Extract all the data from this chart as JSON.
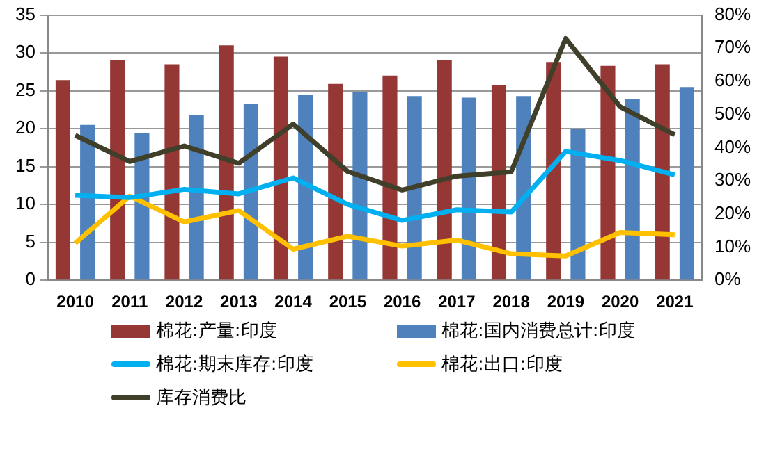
{
  "chart_data": {
    "type": "bar",
    "categories": [
      "2010",
      "2011",
      "2012",
      "2013",
      "2014",
      "2015",
      "2016",
      "2017",
      "2018",
      "2019",
      "2020",
      "2021"
    ],
    "series": [
      {
        "name": "棉花:产量:印度",
        "color": "#953735",
        "values": [
          26.4,
          29.0,
          28.5,
          31.0,
          29.5,
          25.9,
          27.0,
          29.0,
          25.7,
          28.8,
          28.3,
          28.5
        ]
      },
      {
        "name": "棉花:国内消费总计:印度",
        "color": "#4f81bd",
        "values": [
          20.5,
          19.4,
          21.8,
          23.3,
          24.5,
          24.8,
          24.3,
          24.1,
          24.3,
          20.0,
          23.9,
          25.5
        ]
      },
      {
        "name": "棉花:期末库存:印度",
        "type": "line",
        "color": "#00b0f0",
        "values": [
          11.2,
          10.9,
          12.0,
          11.4,
          13.5,
          10.0,
          7.9,
          9.3,
          9.0,
          17.0,
          15.8,
          13.9
        ]
      },
      {
        "name": "棉花:出口:印度",
        "type": "line",
        "color": "#ffc000",
        "values": [
          4.9,
          11.1,
          7.7,
          9.2,
          4.1,
          5.8,
          4.5,
          5.3,
          3.5,
          3.2,
          6.3,
          6.0
        ]
      },
      {
        "name": "库存消费比",
        "type": "line",
        "axis": "y2",
        "color": "#3f3f2a",
        "values": [
          43.7,
          35.8,
          40.5,
          35.3,
          47.1,
          32.8,
          27.2,
          31.4,
          32.7,
          72.9,
          52.3,
          43.9
        ]
      }
    ],
    "ylim": [
      0,
      35
    ],
    "yticks": [
      0,
      5,
      10,
      15,
      20,
      25,
      30,
      35
    ],
    "y2lim": [
      0,
      80
    ],
    "y2ticks": [
      {
        "value": 0,
        "label": "0%"
      },
      {
        "value": 10,
        "label": "10%"
      },
      {
        "value": 20,
        "label": "20%"
      },
      {
        "value": 30,
        "label": "30%"
      },
      {
        "value": 40,
        "label": "40%"
      },
      {
        "value": 50,
        "label": "50%"
      },
      {
        "value": 60,
        "label": "60%"
      },
      {
        "value": 70,
        "label": "70%"
      },
      {
        "value": 80,
        "label": "80%"
      }
    ],
    "grid": "y",
    "legend": "bottom",
    "marker": "none",
    "line_style": "solid"
  }
}
